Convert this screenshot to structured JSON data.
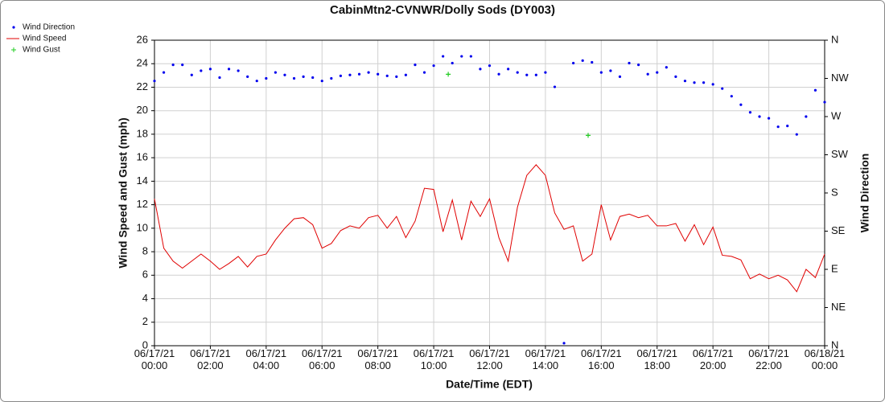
{
  "chart_data": {
    "type": "line",
    "title": "CabinMtn2-CVNWR/Dolly Sods (DY003)",
    "x_label": "Date/Time (EDT)",
    "y_label": "Wind Speed and Gust (mph)",
    "y2_label": "Wind Direction",
    "x": [
      0,
      0.3333,
      0.6667,
      1,
      1.3333,
      1.6667,
      2,
      2.3333,
      2.6667,
      3,
      3.3333,
      3.6667,
      4,
      4.3333,
      4.6667,
      5,
      5.3333,
      5.6667,
      6,
      6.3333,
      6.6667,
      7,
      7.3333,
      7.6667,
      8,
      8.3333,
      8.6667,
      9,
      9.3333,
      9.6667,
      10,
      10.3333,
      10.6667,
      11,
      11.3333,
      11.6667,
      12,
      12.3333,
      12.6667,
      13,
      13.3333,
      13.6667,
      14,
      14.3333,
      14.6667,
      15,
      15.3333,
      15.6667,
      16,
      16.3333,
      16.6667,
      17,
      17.3333,
      17.6667,
      18,
      18.3333,
      18.6667,
      19,
      19.3333,
      19.6667,
      20,
      20.3333,
      20.6667,
      21,
      21.3333,
      21.6667,
      22,
      22.3333,
      22.6667,
      23,
      23.3333,
      23.6667,
      24
    ],
    "series": [
      {
        "name": "Wind Direction",
        "color": "#0000ee",
        "marker": "dot",
        "axis": "y2",
        "values": [
          312,
          322,
          331,
          331,
          319,
          324,
          326,
          316,
          326,
          324,
          317,
          312,
          315,
          322,
          319,
          315,
          317,
          316,
          312,
          315,
          318,
          319,
          320,
          322,
          320,
          318,
          317,
          319,
          331,
          322,
          330,
          341,
          333,
          341,
          341,
          326,
          330,
          320,
          326,
          322,
          319,
          319,
          322,
          305,
          3,
          333,
          336,
          334,
          322,
          324,
          317,
          333,
          331,
          320,
          322,
          328,
          317,
          312,
          310,
          310,
          308,
          303,
          294,
          284,
          275,
          270,
          268,
          258,
          259,
          249,
          270,
          301,
          287
        ]
      },
      {
        "name": "Wind Speed",
        "color": "#e00000",
        "marker": "line",
        "values": [
          12.5,
          8.3,
          7.2,
          6.6,
          7.2,
          7.8,
          7.2,
          6.5,
          7.0,
          7.6,
          6.7,
          7.6,
          7.8,
          9.0,
          10.0,
          10.8,
          10.9,
          10.3,
          8.3,
          8.7,
          9.8,
          10.2,
          10.0,
          10.9,
          11.1,
          10.0,
          11.0,
          9.2,
          10.6,
          13.4,
          13.3,
          9.7,
          12.4,
          9.0,
          12.3,
          11.0,
          12.5,
          9.2,
          7.2,
          11.8,
          14.5,
          15.4,
          14.5,
          11.3,
          9.9,
          10.2,
          7.2,
          7.8,
          12.0,
          9.0,
          11.0,
          11.2,
          10.9,
          11.1,
          10.2,
          10.2,
          10.4,
          8.9,
          10.3,
          8.6,
          10.1,
          7.7,
          7.6,
          7.3,
          5.7,
          6.1,
          5.7,
          6.0,
          5.6,
          4.6,
          6.5,
          5.8,
          7.8
        ]
      },
      {
        "name": "Wind Gust",
        "color": "#22cc22",
        "marker": "plus",
        "x": [
          10.52,
          15.53
        ],
        "values": [
          23.1,
          17.9
        ]
      }
    ],
    "xlim": [
      0,
      24
    ],
    "xticks": [
      {
        "value": 0,
        "label": "06/17/21\n00:00"
      },
      {
        "value": 2,
        "label": "06/17/21\n02:00"
      },
      {
        "value": 4,
        "label": "06/17/21\n04:00"
      },
      {
        "value": 6,
        "label": "06/17/21\n06:00"
      },
      {
        "value": 8,
        "label": "06/17/21\n08:00"
      },
      {
        "value": 10,
        "label": "06/17/21\n10:00"
      },
      {
        "value": 12,
        "label": "06/17/21\n12:00"
      },
      {
        "value": 14,
        "label": "06/17/21\n14:00"
      },
      {
        "value": 16,
        "label": "06/17/21\n16:00"
      },
      {
        "value": 18,
        "label": "06/17/21\n18:00"
      },
      {
        "value": 20,
        "label": "06/17/21\n20:00"
      },
      {
        "value": 22,
        "label": "06/17/21\n22:00"
      },
      {
        "value": 24,
        "label": "06/18/21\n00:00"
      }
    ],
    "ylim": [
      0,
      26
    ],
    "yticks": [
      0,
      2,
      4,
      6,
      8,
      10,
      12,
      14,
      16,
      18,
      20,
      22,
      24,
      26
    ],
    "y2lim": [
      0,
      360
    ],
    "y2ticks": [
      {
        "value": 0,
        "label": "N"
      },
      {
        "value": 45,
        "label": "NE"
      },
      {
        "value": 90,
        "label": "E"
      },
      {
        "value": 135,
        "label": "SE"
      },
      {
        "value": 180,
        "label": "S"
      },
      {
        "value": 225,
        "label": "SW"
      },
      {
        "value": 270,
        "label": "W"
      },
      {
        "value": 315,
        "label": "NW"
      },
      {
        "value": 360,
        "label": "N"
      }
    ],
    "grid": true,
    "legend": "top-left"
  }
}
